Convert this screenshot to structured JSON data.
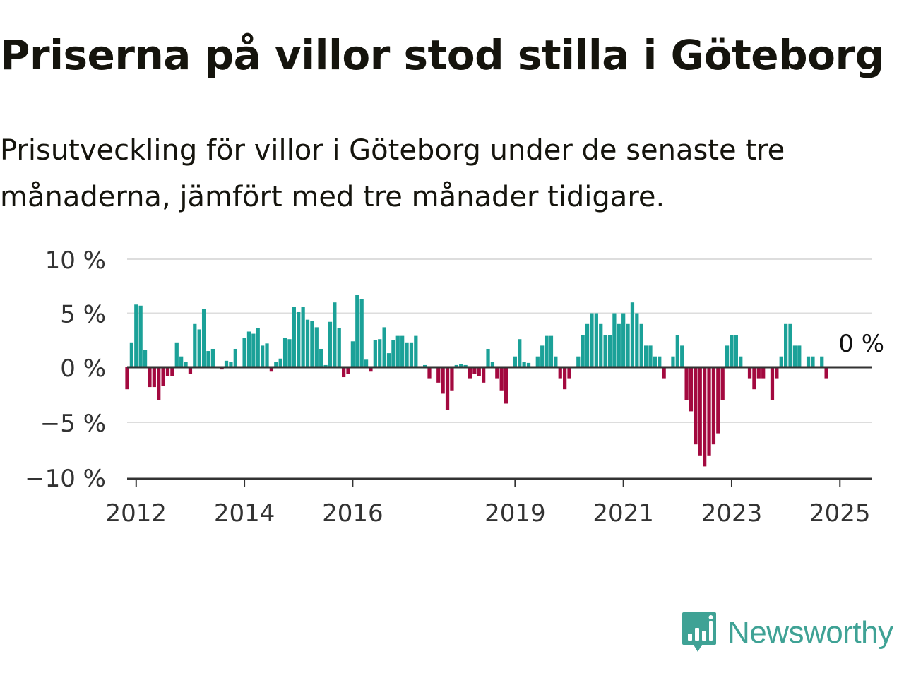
{
  "header": {
    "title": "Priserna på villor stod stilla i Göteborg",
    "subtitle": "Prisutveckling för villor i Göteborg under de senaste tre månaderna, jämfört med tre månader tidigare."
  },
  "brand": {
    "name": "Newsworthy",
    "color": "#3fa295"
  },
  "colors": {
    "positive": "#1ba198",
    "negative": "#a3093f",
    "grid": "#dddddd",
    "axis": "#333333",
    "text": "#333333"
  },
  "chart_data": {
    "type": "bar",
    "title": "",
    "xlabel": "",
    "ylabel": "",
    "ylim": [
      -10,
      10
    ],
    "y_ticks": [
      10,
      5,
      0,
      -5,
      -10
    ],
    "y_tick_labels": [
      "10 %",
      "5 %",
      "0 %",
      "−5 %",
      "−10 %"
    ],
    "x_ticks": [
      2012,
      2014,
      2016,
      2019,
      2021,
      2023,
      2025
    ],
    "x_tick_labels": [
      "2012",
      "2014",
      "2016",
      "2019",
      "2021",
      "2023",
      "2025"
    ],
    "x_start": "2011-11",
    "x_end": "2025-08",
    "frequency": "monthly",
    "grid": true,
    "legend": "none",
    "annotation": {
      "x": "2025-01",
      "label": "0 %"
    },
    "series": [
      {
        "values": [
          -2.0,
          2.3,
          5.8,
          5.7,
          1.6,
          -1.8,
          -1.8,
          -3.0,
          -1.7,
          -0.8,
          -0.8,
          2.3,
          1.0,
          0.5,
          -0.6,
          4.0,
          3.5,
          5.4,
          1.5,
          1.7,
          0.0,
          -0.2,
          0.6,
          0.5,
          1.7,
          0.0,
          2.7,
          3.3,
          3.1,
          3.6,
          2.0,
          2.2,
          -0.4,
          0.5,
          0.8,
          2.7,
          2.6,
          5.6,
          5.1,
          5.6,
          4.4,
          4.3,
          3.7,
          1.7,
          0.2,
          4.2,
          6.0,
          3.6,
          -0.9,
          -0.6,
          2.4,
          6.7,
          6.3,
          0.7,
          -0.4,
          2.5,
          2.6,
          3.7,
          1.3,
          2.5,
          2.9,
          2.9,
          2.3,
          2.3,
          2.9,
          0.1,
          0.2,
          -1.0,
          0.0,
          -1.4,
          -2.4,
          -3.9,
          -2.1,
          0.2,
          0.3,
          0.2,
          -1.0,
          -0.6,
          -0.8,
          -1.4,
          1.7,
          0.5,
          -1.0,
          -2.1,
          -3.3,
          0.0,
          1.0,
          2.6,
          0.5,
          0.4,
          0.0,
          1.0,
          2.0,
          2.9,
          2.9,
          1.0,
          -1.0,
          -2.0,
          -1.0,
          0.0,
          1.0,
          3.0,
          4.0,
          5.0,
          5.0,
          4.0,
          3.0,
          3.0,
          5.0,
          4.0,
          5.0,
          4.0,
          6.0,
          5.0,
          4.0,
          2.0,
          2.0,
          1.0,
          1.0,
          -1.0,
          0.0,
          1.0,
          3.0,
          2.0,
          -3.0,
          -4.0,
          -7.0,
          -8.0,
          -9.0,
          -8.0,
          -7.0,
          -6.0,
          -3.0,
          2.0,
          3.0,
          3.0,
          1.0,
          0.0,
          -1.0,
          -2.0,
          -1.0,
          -1.0,
          0.0,
          -3.0,
          -1.0,
          1.0,
          4.0,
          4.0,
          2.0,
          2.0,
          0.0,
          1.0,
          1.0,
          0.0,
          1.0,
          -1.0,
          0.0,
          0.0,
          0.0,
          0.0,
          0.0
        ]
      }
    ]
  }
}
